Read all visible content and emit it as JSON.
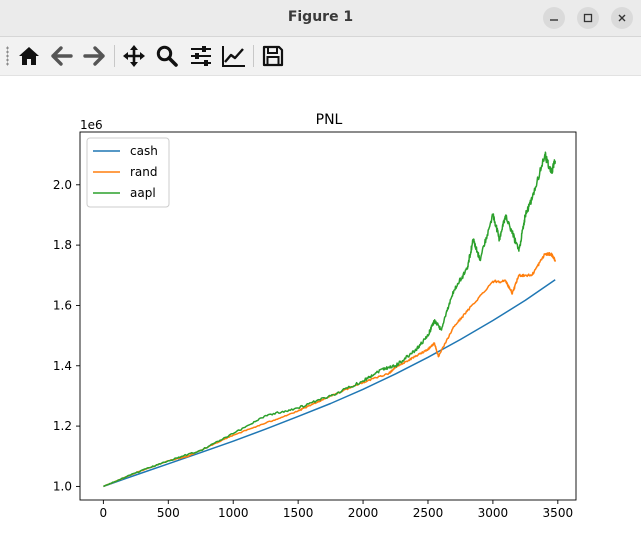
{
  "window": {
    "title": "Figure 1",
    "controls": [
      "minimize",
      "maximize",
      "close"
    ]
  },
  "toolbar": {
    "icons": [
      "home-icon",
      "back-icon",
      "forward-icon",
      "pan-icon",
      "zoom-icon",
      "configure-subplots-icon",
      "edit-axis-icon",
      "save-icon"
    ]
  },
  "chart_data": {
    "type": "line",
    "title": "PNL",
    "xlabel": "",
    "ylabel": "",
    "offset_label": "1e6",
    "xlim": [
      -180,
      3640
    ],
    "ylim": [
      0.955,
      2.175
    ],
    "xticks": [
      0,
      500,
      1000,
      1500,
      2000,
      2500,
      3000,
      3500
    ],
    "yticks": [
      1.0,
      1.2,
      1.4,
      1.6,
      1.8,
      2.0
    ],
    "ytick_labels": [
      "1.0",
      "1.2",
      "1.4",
      "1.6",
      "1.8",
      "2.0"
    ],
    "legend_position": "top-left",
    "grid": false,
    "series": [
      {
        "name": "cash",
        "color": "#1f77b4",
        "x": [
          0,
          250,
          500,
          750,
          1000,
          1250,
          1500,
          1750,
          2000,
          2250,
          2500,
          2750,
          3000,
          3250,
          3480
        ],
        "values": [
          1.0,
          1.038,
          1.075,
          1.112,
          1.15,
          1.19,
          1.232,
          1.275,
          1.322,
          1.373,
          1.428,
          1.487,
          1.55,
          1.617,
          1.685
        ]
      },
      {
        "name": "rand",
        "color": "#ff7f0e",
        "x": [
          0,
          250,
          500,
          650,
          750,
          1000,
          1250,
          1500,
          1600,
          1750,
          2000,
          2200,
          2250,
          2400,
          2500,
          2550,
          2580,
          2700,
          2800,
          3000,
          3100,
          3150,
          3200,
          3300,
          3400,
          3450,
          3480
        ],
        "values": [
          1.0,
          1.045,
          1.085,
          1.1,
          1.12,
          1.17,
          1.21,
          1.25,
          1.27,
          1.3,
          1.345,
          1.375,
          1.395,
          1.43,
          1.455,
          1.475,
          1.43,
          1.53,
          1.58,
          1.68,
          1.68,
          1.64,
          1.7,
          1.7,
          1.77,
          1.77,
          1.75
        ]
      },
      {
        "name": "aapl",
        "color": "#2ca02c",
        "x": [
          0,
          250,
          500,
          750,
          1000,
          1250,
          1500,
          1750,
          2000,
          2150,
          2250,
          2400,
          2500,
          2550,
          2600,
          2700,
          2800,
          2850,
          2900,
          3000,
          3050,
          3100,
          3200,
          3250,
          3300,
          3400,
          3450,
          3480
        ],
        "values": [
          1.0,
          1.045,
          1.085,
          1.12,
          1.175,
          1.235,
          1.26,
          1.3,
          1.35,
          1.39,
          1.4,
          1.45,
          1.5,
          1.55,
          1.52,
          1.65,
          1.72,
          1.82,
          1.75,
          1.9,
          1.82,
          1.9,
          1.78,
          1.9,
          1.95,
          2.1,
          2.04,
          2.08
        ]
      }
    ]
  }
}
